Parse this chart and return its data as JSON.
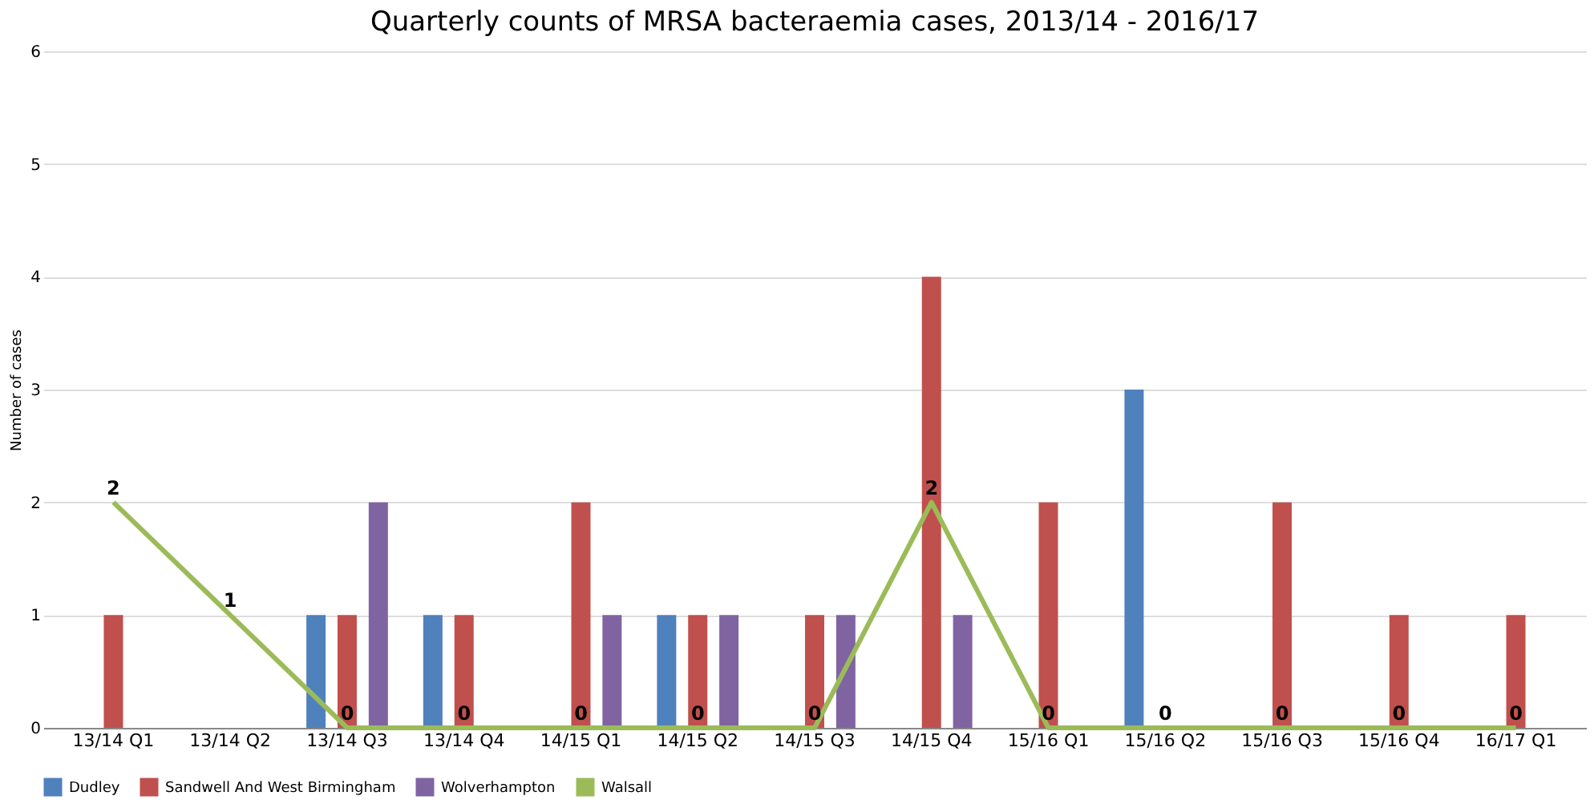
{
  "chart_data": {
    "type": "bar",
    "title": "Quarterly counts of MRSA bacteraemia cases, 2013/14 - 2016/17",
    "ylabel": "Number of  cases",
    "categories": [
      "13/14 Q1",
      "13/14 Q2",
      "13/14 Q3",
      "13/14 Q4",
      "14/15 Q1",
      "14/15 Q2",
      "14/15 Q3",
      "14/15 Q4",
      "15/16 Q1",
      "15/16 Q2",
      "15/16 Q3",
      "15/16 Q4",
      "16/17 Q1"
    ],
    "series": [
      {
        "name": "Dudley",
        "color": "#4f81bd",
        "values": [
          0,
          0,
          1,
          1,
          0,
          1,
          0,
          0,
          0,
          3,
          0,
          0,
          0
        ]
      },
      {
        "name": "Sandwell And West Birmingham",
        "color": "#c0504d",
        "values": [
          1,
          0,
          1,
          1,
          2,
          1,
          1,
          4,
          2,
          0,
          2,
          1,
          1
        ]
      },
      {
        "name": "Wolverhampton",
        "color": "#8064a2",
        "values": [
          0,
          0,
          2,
          0,
          1,
          1,
          1,
          1,
          0,
          0,
          0,
          0,
          0
        ]
      },
      {
        "name": "Walsall",
        "type": "line",
        "color": "#9bbb59",
        "values": [
          2,
          1,
          0,
          0,
          0,
          0,
          0,
          2,
          0,
          0,
          0,
          0,
          0
        ],
        "value_labels": [
          "2",
          "1",
          "0",
          "0",
          "0",
          "0",
          "0",
          "2",
          "0",
          "0",
          "0",
          "0",
          "0"
        ]
      }
    ],
    "ylim": [
      0,
      6
    ],
    "yticks": [
      0,
      1,
      2,
      3,
      4,
      5,
      6
    ],
    "grid": "y",
    "legend": "bottom",
    "marker": "none"
  }
}
